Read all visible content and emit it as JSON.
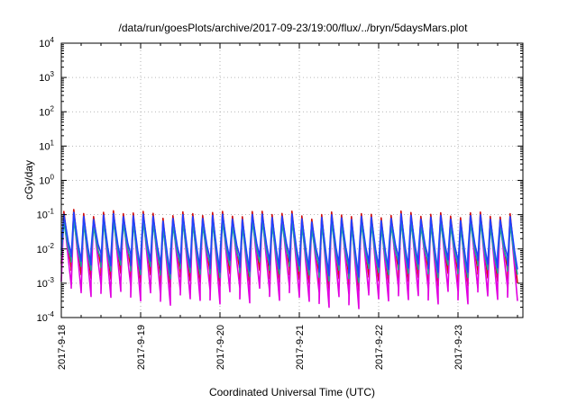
{
  "chart_data": {
    "type": "line",
    "title": "/data/run/goesPlots/archive/2017-09-23/19:00/flux/../bryn/5daysMars.plot",
    "xlabel": "Coordinated Universal Time (UTC)",
    "ylabel": "cGy/day",
    "y_scale": "log",
    "ylim": [
      0.0001,
      10000
    ],
    "y_ticks": [
      {
        "base": "10",
        "exp": "-4",
        "value": 0.0001
      },
      {
        "base": "10",
        "exp": "-3",
        "value": 0.001
      },
      {
        "base": "10",
        "exp": "-2",
        "value": 0.01
      },
      {
        "base": "10",
        "exp": "-1",
        "value": 0.1
      },
      {
        "base": "10",
        "exp": "0",
        "value": 1
      },
      {
        "base": "10",
        "exp": "1",
        "value": 10
      },
      {
        "base": "10",
        "exp": "2",
        "value": 100
      },
      {
        "base": "10",
        "exp": "3",
        "value": 1000
      },
      {
        "base": "10",
        "exp": "4",
        "value": 10000
      }
    ],
    "x_ticks": [
      "2017-9-18",
      "2017-9-19",
      "2017-9-20",
      "2017-9-21",
      "2017-9-22",
      "2017-9-23"
    ],
    "xlim": [
      "2017-09-18 00:00",
      "2017-09-23 19:00"
    ],
    "grid": true,
    "legend": "none",
    "waveform": {
      "period_hours": 3,
      "cycles": 46,
      "day_peaks": [
        0.1,
        0.09,
        0.095,
        0.085,
        0.09,
        0.085
      ],
      "day_troughs": [
        0.001,
        0.0007,
        0.0009,
        0.0006,
        0.0008,
        0.0008
      ]
    },
    "series": [
      {
        "color": "#d01010",
        "peak_scale": 1.15,
        "trough_scale": 2.0
      },
      {
        "color": "#e000e0",
        "peak_scale": 0.9,
        "trough_scale": 0.6
      },
      {
        "color": "#20a0a0",
        "peak_scale": 0.55,
        "trough_scale": 3.5
      },
      {
        "color": "#2040ff",
        "peak_scale": 0.95,
        "trough_scale": 5.0
      }
    ]
  }
}
